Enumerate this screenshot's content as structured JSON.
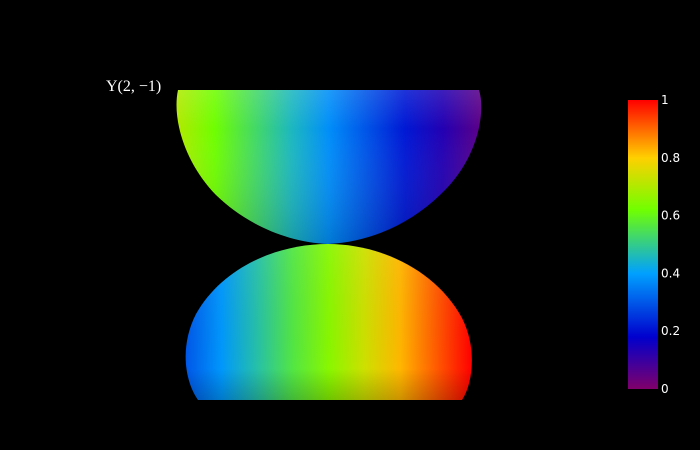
{
  "chart_data": {
    "type": "surface",
    "title": "Y(2, −1)",
    "colorscale": [
      [
        0.0,
        "#80006a"
      ],
      [
        0.18,
        "#0000cd"
      ],
      [
        0.4,
        "#00a0ff"
      ],
      [
        0.62,
        "#70ff00"
      ],
      [
        0.8,
        "#ffd000"
      ],
      [
        1.0,
        "#ff0000"
      ]
    ],
    "colorbar": {
      "range": [
        0,
        1
      ],
      "ticks": [
        0,
        0.2,
        0.4,
        0.6,
        0.8,
        1
      ],
      "tick_labels": [
        "0",
        "0.2",
        "0.4",
        "0.6",
        "0.8",
        "1"
      ]
    },
    "lobes": [
      {
        "name": "upper",
        "value_range": [
          0.05,
          0.7
        ]
      },
      {
        "name": "lower",
        "value_range": [
          0.3,
          1.0
        ]
      }
    ],
    "background": "#000000"
  }
}
